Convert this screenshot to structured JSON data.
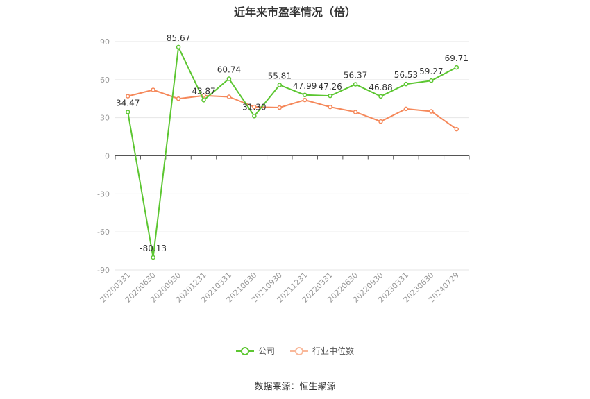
{
  "chart_data": {
    "type": "line",
    "title": "近年来市盈率情况（倍）",
    "source": "数据来源：恒生聚源",
    "categories": [
      "20200331",
      "20200630",
      "20200930",
      "20201231",
      "20210331",
      "20210630",
      "20210930",
      "20211231",
      "20220331",
      "20220630",
      "20220930",
      "20230331",
      "20230630",
      "20240729"
    ],
    "y_ticks": [
      "90",
      "60",
      "30",
      "0",
      "-30",
      "-60",
      "-90"
    ],
    "ylim": [
      -90,
      90
    ],
    "grid": true,
    "legend_position": "bottom",
    "series": [
      {
        "name": "公司",
        "color": "#5cc631",
        "values": [
          34.47,
          -80.13,
          85.67,
          43.87,
          60.74,
          31.3,
          55.81,
          47.99,
          47.26,
          56.37,
          46.88,
          56.53,
          59.27,
          69.71
        ],
        "labels": [
          "34.47",
          "-80.13",
          "85.67",
          "43.87",
          "60.74",
          "31.30",
          "55.81",
          "47.99",
          "47.26",
          "56.37",
          "46.88",
          "56.53",
          "59.27",
          "69.71"
        ]
      },
      {
        "name": "行业中位数",
        "color": "#f5885a",
        "values": [
          47.0,
          52.0,
          45.0,
          47.5,
          46.5,
          38.5,
          38.0,
          44.0,
          38.5,
          34.5,
          27.0,
          37.0,
          35.0,
          21.0
        ]
      }
    ]
  }
}
